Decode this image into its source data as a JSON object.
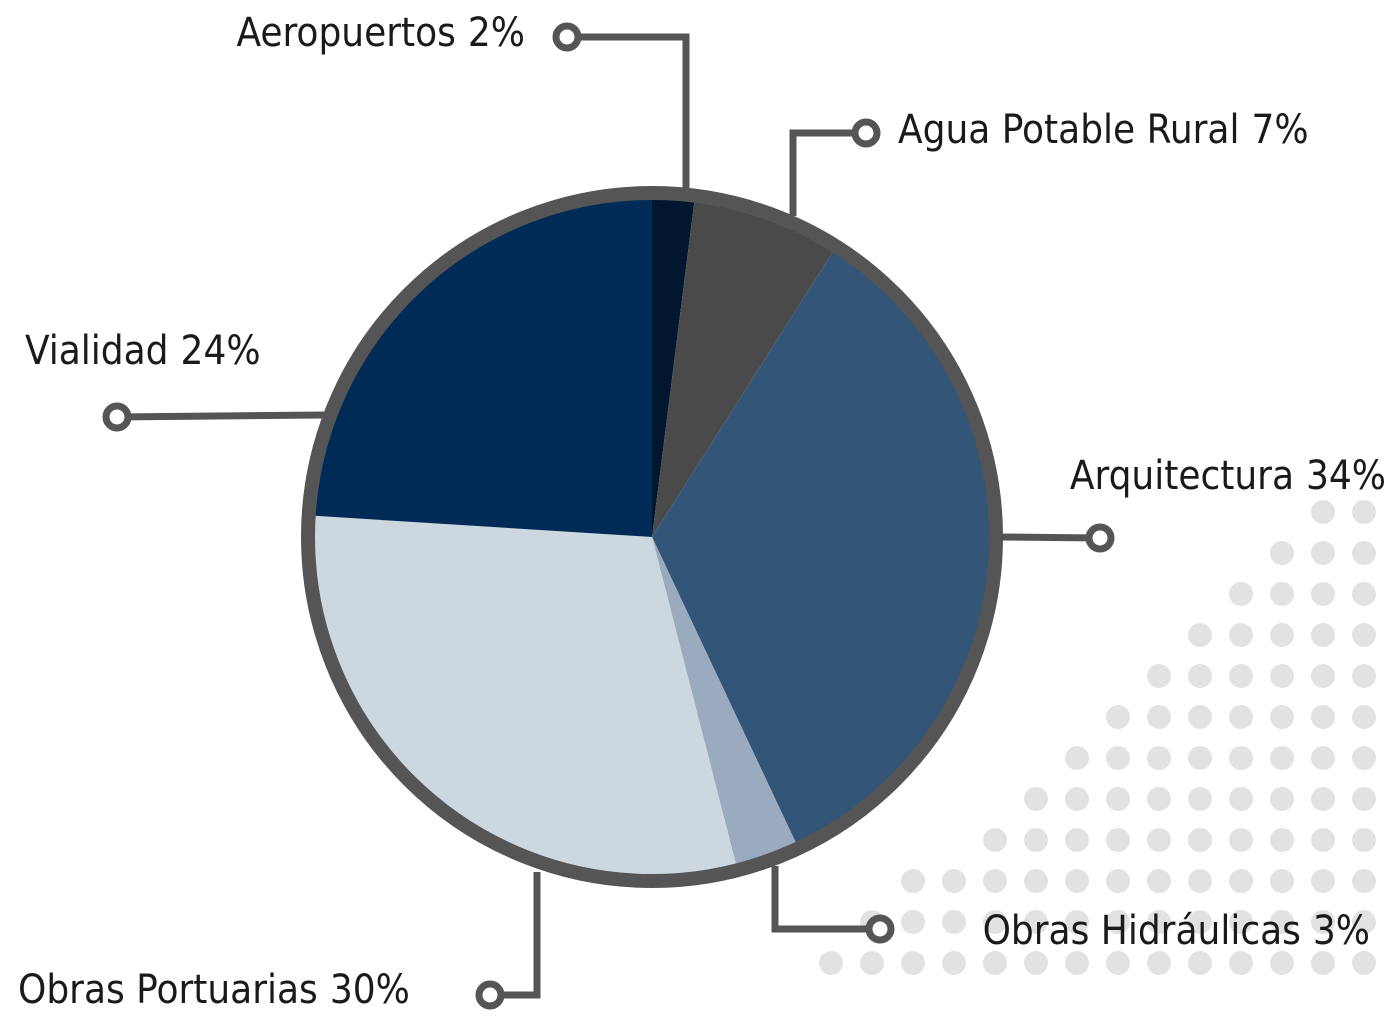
{
  "chart_data": {
    "type": "pie",
    "categories": [
      "Aeropuertos",
      "Agua Potable Rural",
      "Arquitectura",
      "Obras Hidráulicas",
      "Obras Portuarias",
      "Vialidad"
    ],
    "values": [
      2,
      7,
      34,
      3,
      30,
      24
    ],
    "value_labels": [
      "2%",
      "7%",
      "34%",
      "3%",
      "30%",
      "24%"
    ],
    "colors": [
      "#00172f",
      "#4a4a4a",
      "#325578",
      "#9aabbf",
      "#cdd7e0",
      "#002b57"
    ]
  }
}
